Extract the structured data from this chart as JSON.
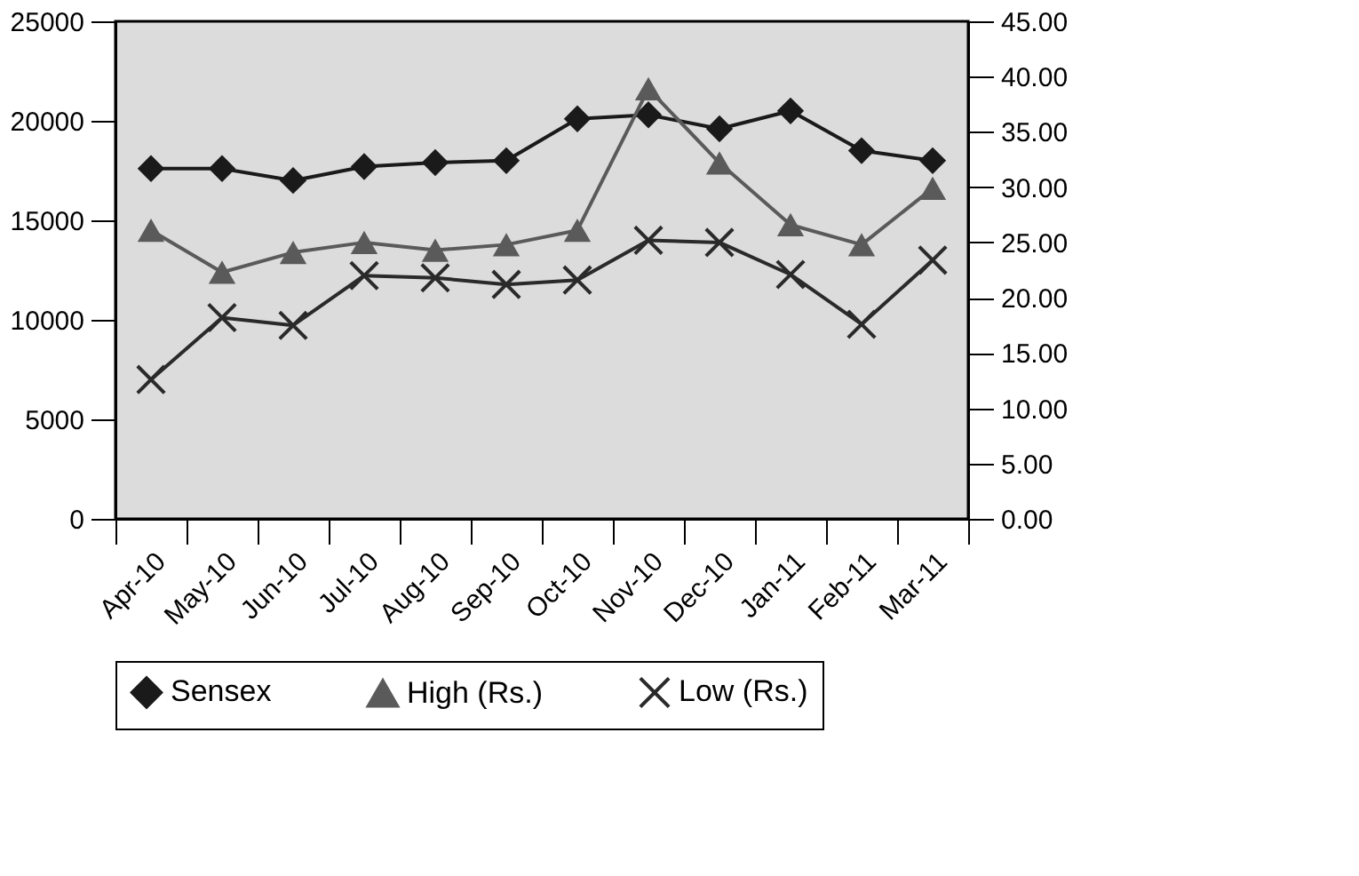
{
  "chart_data": {
    "type": "line",
    "categories": [
      "Apr-10",
      "May-10",
      "Jun-10",
      "Jul-10",
      "Aug-10",
      "Sep-10",
      "Oct-10",
      "Nov-10",
      "Dec-10",
      "Jan-11",
      "Feb-11",
      "Mar-11"
    ],
    "series": [
      {
        "name": "Sensex",
        "color": "#1a1a1a",
        "marker": "diamond",
        "values": [
          17600,
          17600,
          17000,
          17700,
          17900,
          18000,
          20100,
          20300,
          19600,
          20500,
          18500,
          18000
        ]
      },
      {
        "name": "High (Rs.)",
        "color": "#5a5a5a",
        "marker": "triangle",
        "axis": "y2",
        "values": [
          26.1,
          22.3,
          24.1,
          25.0,
          24.3,
          24.8,
          26.1,
          38.9,
          32.2,
          26.6,
          24.8,
          29.9
        ]
      },
      {
        "name": "Low (Rs.)",
        "color": "#2a2a2a",
        "marker": "cross",
        "axis": "y2",
        "values": [
          12.6,
          18.2,
          17.5,
          22.0,
          21.8,
          21.2,
          21.6,
          25.2,
          25.0,
          22.1,
          17.6,
          23.4
        ]
      }
    ],
    "ylim": [
      0,
      25000
    ],
    "yticks": [
      0,
      5000,
      10000,
      15000,
      20000,
      25000
    ],
    "y2lim": [
      0,
      45
    ],
    "y2ticks": [
      {
        "value": 0,
        "label": "0.00"
      },
      {
        "value": 5,
        "label": "5.00"
      },
      {
        "value": 10,
        "label": "10.00"
      },
      {
        "value": 15,
        "label": "15.00"
      },
      {
        "value": 20,
        "label": "20.00"
      },
      {
        "value": 25,
        "label": "25.00"
      },
      {
        "value": 30,
        "label": "30.00"
      },
      {
        "value": 35,
        "label": "35.00"
      },
      {
        "value": 40,
        "label": "40.00"
      },
      {
        "value": 45,
        "label": "45.00"
      }
    ],
    "grid": false,
    "legend": "bottom",
    "line_style": "solid"
  }
}
